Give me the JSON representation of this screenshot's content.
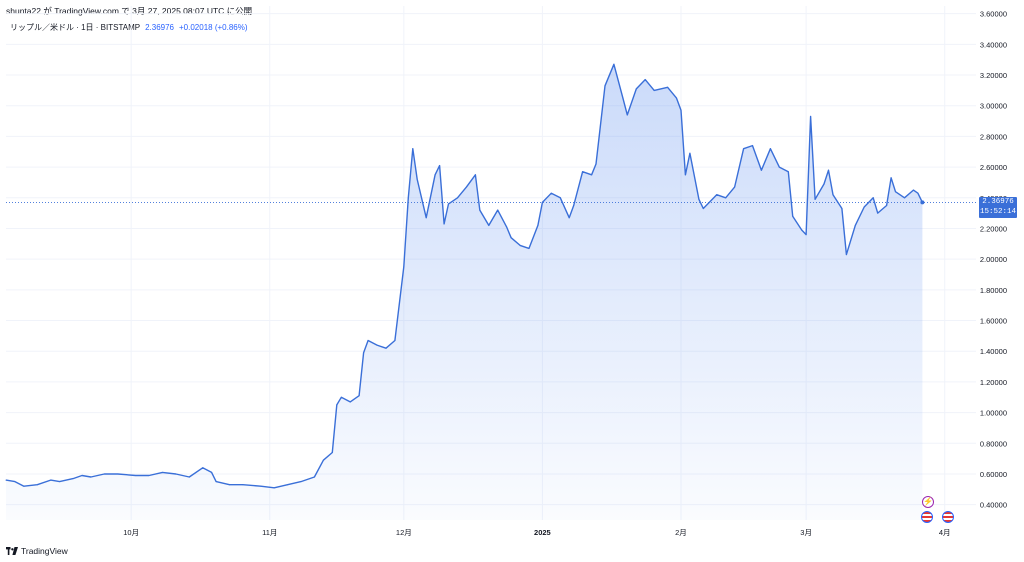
{
  "header": {
    "caption": "shunta22 が TradingView.com で 3月 27, 2025 08:07 UTC に公開",
    "symbol": "リップル／米ドル · 1日 · BITSTAMP",
    "last_value": "2.36976",
    "change": "+0.02018 (+0.86%)"
  },
  "footer": {
    "brand": "TradingView"
  },
  "price_badge": {
    "price": "2.36976",
    "countdown": "15:52:14"
  },
  "colors": {
    "line": "#3a6fd8",
    "accent": "#2962ff",
    "event_purple": "#9c27b0",
    "event_red": "#e53935"
  },
  "icons": {
    "event_1": "bolt-icon",
    "event_2": "us-flag-icon",
    "event_3": "us-flag-icon"
  },
  "chart_data": {
    "type": "area",
    "title": "",
    "xlabel": "",
    "ylabel": "",
    "ylim": [
      0.3,
      3.65
    ],
    "y_ticks": [
      "3.60000",
      "3.40000",
      "3.20000",
      "3.00000",
      "2.80000",
      "2.60000",
      "2.40000",
      "2.20000",
      "2.00000",
      "1.80000",
      "1.60000",
      "1.40000",
      "1.20000",
      "1.00000",
      "0.80000",
      "0.60000",
      "0.40000"
    ],
    "x_ticks": [
      {
        "label": "10月",
        "date": "2024-10-01",
        "bold": false
      },
      {
        "label": "11月",
        "date": "2024-11-01",
        "bold": false
      },
      {
        "label": "12月",
        "date": "2024-12-01",
        "bold": false
      },
      {
        "label": "2025",
        "date": "2025-01-01",
        "bold": true
      },
      {
        "label": "2月",
        "date": "2025-02-01",
        "bold": false
      },
      {
        "label": "3月",
        "date": "2025-03-01",
        "bold": false
      },
      {
        "label": "4月",
        "date": "2025-04-01",
        "bold": false
      }
    ],
    "x_range": [
      "2024-09-03",
      "2025-04-08"
    ],
    "last_price": 2.36976,
    "grid": true,
    "series": [
      {
        "values": [
          [
            "2024-09-03",
            0.56
          ],
          [
            "2024-09-05",
            0.55
          ],
          [
            "2024-09-07",
            0.52
          ],
          [
            "2024-09-10",
            0.53
          ],
          [
            "2024-09-13",
            0.56
          ],
          [
            "2024-09-15",
            0.55
          ],
          [
            "2024-09-18",
            0.57
          ],
          [
            "2024-09-20",
            0.59
          ],
          [
            "2024-09-22",
            0.58
          ],
          [
            "2024-09-25",
            0.6
          ],
          [
            "2024-09-28",
            0.6
          ],
          [
            "2024-10-02",
            0.59
          ],
          [
            "2024-10-05",
            0.59
          ],
          [
            "2024-10-08",
            0.61
          ],
          [
            "2024-10-11",
            0.6
          ],
          [
            "2024-10-14",
            0.58
          ],
          [
            "2024-10-17",
            0.64
          ],
          [
            "2024-10-19",
            0.61
          ],
          [
            "2024-10-20",
            0.55
          ],
          [
            "2024-10-23",
            0.53
          ],
          [
            "2024-10-26",
            0.53
          ],
          [
            "2024-10-30",
            0.52
          ],
          [
            "2024-11-02",
            0.51
          ],
          [
            "2024-11-05",
            0.53
          ],
          [
            "2024-11-08",
            0.55
          ],
          [
            "2024-11-11",
            0.58
          ],
          [
            "2024-11-13",
            0.69
          ],
          [
            "2024-11-15",
            0.74
          ],
          [
            "2024-11-16",
            1.05
          ],
          [
            "2024-11-17",
            1.1
          ],
          [
            "2024-11-19",
            1.07
          ],
          [
            "2024-11-21",
            1.11
          ],
          [
            "2024-11-22",
            1.39
          ],
          [
            "2024-11-23",
            1.47
          ],
          [
            "2024-11-25",
            1.44
          ],
          [
            "2024-11-27",
            1.42
          ],
          [
            "2024-11-29",
            1.47
          ],
          [
            "2024-12-01",
            1.95
          ],
          [
            "2024-12-02",
            2.4
          ],
          [
            "2024-12-03",
            2.72
          ],
          [
            "2024-12-04",
            2.52
          ],
          [
            "2024-12-06",
            2.27
          ],
          [
            "2024-12-08",
            2.55
          ],
          [
            "2024-12-09",
            2.61
          ],
          [
            "2024-12-10",
            2.23
          ],
          [
            "2024-12-11",
            2.36
          ],
          [
            "2024-12-13",
            2.4
          ],
          [
            "2024-12-15",
            2.47
          ],
          [
            "2024-12-17",
            2.55
          ],
          [
            "2024-12-18",
            2.32
          ],
          [
            "2024-12-20",
            2.22
          ],
          [
            "2024-12-22",
            2.32
          ],
          [
            "2024-12-24",
            2.21
          ],
          [
            "2024-12-25",
            2.14
          ],
          [
            "2024-12-27",
            2.09
          ],
          [
            "2024-12-29",
            2.07
          ],
          [
            "2024-12-31",
            2.22
          ],
          [
            "2025-01-01",
            2.37
          ],
          [
            "2025-01-03",
            2.43
          ],
          [
            "2025-01-05",
            2.4
          ],
          [
            "2025-01-07",
            2.27
          ],
          [
            "2025-01-08",
            2.35
          ],
          [
            "2025-01-10",
            2.57
          ],
          [
            "2025-01-12",
            2.55
          ],
          [
            "2025-01-13",
            2.62
          ],
          [
            "2025-01-15",
            3.13
          ],
          [
            "2025-01-17",
            3.27
          ],
          [
            "2025-01-19",
            3.05
          ],
          [
            "2025-01-20",
            2.94
          ],
          [
            "2025-01-22",
            3.11
          ],
          [
            "2025-01-24",
            3.17
          ],
          [
            "2025-01-26",
            3.1
          ],
          [
            "2025-01-29",
            3.12
          ],
          [
            "2025-01-31",
            3.05
          ],
          [
            "2025-02-01",
            2.97
          ],
          [
            "2025-02-02",
            2.55
          ],
          [
            "2025-02-03",
            2.69
          ],
          [
            "2025-02-05",
            2.39
          ],
          [
            "2025-02-06",
            2.33
          ],
          [
            "2025-02-09",
            2.42
          ],
          [
            "2025-02-11",
            2.4
          ],
          [
            "2025-02-13",
            2.47
          ],
          [
            "2025-02-15",
            2.72
          ],
          [
            "2025-02-17",
            2.74
          ],
          [
            "2025-02-19",
            2.58
          ],
          [
            "2025-02-21",
            2.72
          ],
          [
            "2025-02-23",
            2.6
          ],
          [
            "2025-02-25",
            2.57
          ],
          [
            "2025-02-26",
            2.28
          ],
          [
            "2025-02-28",
            2.19
          ],
          [
            "2025-03-01",
            2.16
          ],
          [
            "2025-03-02",
            2.93
          ],
          [
            "2025-03-03",
            2.39
          ],
          [
            "2025-03-05",
            2.49
          ],
          [
            "2025-03-06",
            2.58
          ],
          [
            "2025-03-07",
            2.42
          ],
          [
            "2025-03-09",
            2.33
          ],
          [
            "2025-03-10",
            2.03
          ],
          [
            "2025-03-12",
            2.22
          ],
          [
            "2025-03-14",
            2.34
          ],
          [
            "2025-03-16",
            2.4
          ],
          [
            "2025-03-17",
            2.3
          ],
          [
            "2025-03-19",
            2.35
          ],
          [
            "2025-03-20",
            2.53
          ],
          [
            "2025-03-21",
            2.44
          ],
          [
            "2025-03-23",
            2.4
          ],
          [
            "2025-03-25",
            2.45
          ],
          [
            "2025-03-26",
            2.43
          ],
          [
            "2025-03-27",
            2.37
          ]
        ]
      }
    ]
  }
}
